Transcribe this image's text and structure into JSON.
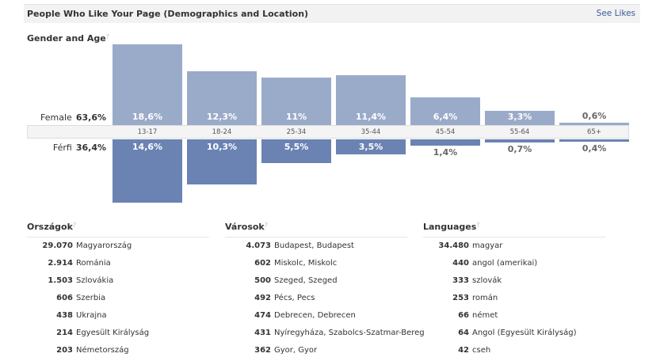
{
  "header": {
    "title": "People Who Like Your Page (Demographics and Location)",
    "see_likes": "See Likes"
  },
  "gender_age": {
    "title": "Gender and Age",
    "help": "?",
    "female": {
      "label": "Female",
      "total": "63,6%"
    },
    "male": {
      "label": "Férfi",
      "total": "36,4%"
    }
  },
  "chart_data": {
    "type": "bar",
    "categories": [
      "13-17",
      "18-24",
      "25-34",
      "35-44",
      "45-54",
      "55-64",
      "65+"
    ],
    "series": [
      {
        "name": "Female",
        "values": [
          18.6,
          12.3,
          11,
          11.4,
          6.4,
          3.3,
          0.6
        ],
        "labels": [
          "18,6%",
          "12,3%",
          "11%",
          "11,4%",
          "6,4%",
          "3,3%",
          "0,6%"
        ],
        "color": "#9aabc9"
      },
      {
        "name": "Férfi",
        "values": [
          14.6,
          10.3,
          5.5,
          3.5,
          1.4,
          0.7,
          0.4
        ],
        "labels": [
          "14,6%",
          "10,3%",
          "5,5%",
          "3,5%",
          "1,4%",
          "0,7%",
          "0,4%"
        ],
        "color": "#6a83b2"
      }
    ]
  },
  "lists": [
    {
      "title": "Országok",
      "help": "?",
      "rows": [
        [
          "29.070",
          "Magyarország"
        ],
        [
          "2.914",
          "Románia"
        ],
        [
          "1.503",
          "Szlovákia"
        ],
        [
          "606",
          "Szerbia"
        ],
        [
          "438",
          "Ukrajna"
        ],
        [
          "214",
          "Egyesült Királyság"
        ],
        [
          "203",
          "Németország"
        ]
      ]
    },
    {
      "title": "Városok",
      "help": "?",
      "rows": [
        [
          "4.073",
          "Budapest, Budapest"
        ],
        [
          "602",
          "Miskolc, Miskolc"
        ],
        [
          "500",
          "Szeged, Szeged"
        ],
        [
          "492",
          "Pécs, Pecs"
        ],
        [
          "474",
          "Debrecen, Debrecen"
        ],
        [
          "431",
          "Nyíregyháza, Szabolcs-Szatmar-Bereg"
        ],
        [
          "362",
          "Gyor, Gyor"
        ]
      ]
    },
    {
      "title": "Languages",
      "help": "?",
      "rows": [
        [
          "34.480",
          "magyar"
        ],
        [
          "440",
          "angol (amerikai)"
        ],
        [
          "333",
          "szlovák"
        ],
        [
          "253",
          "román"
        ],
        [
          "66",
          "német"
        ],
        [
          "64",
          "Angol (Egyesült Királyság)"
        ],
        [
          "42",
          "cseh"
        ]
      ]
    }
  ]
}
